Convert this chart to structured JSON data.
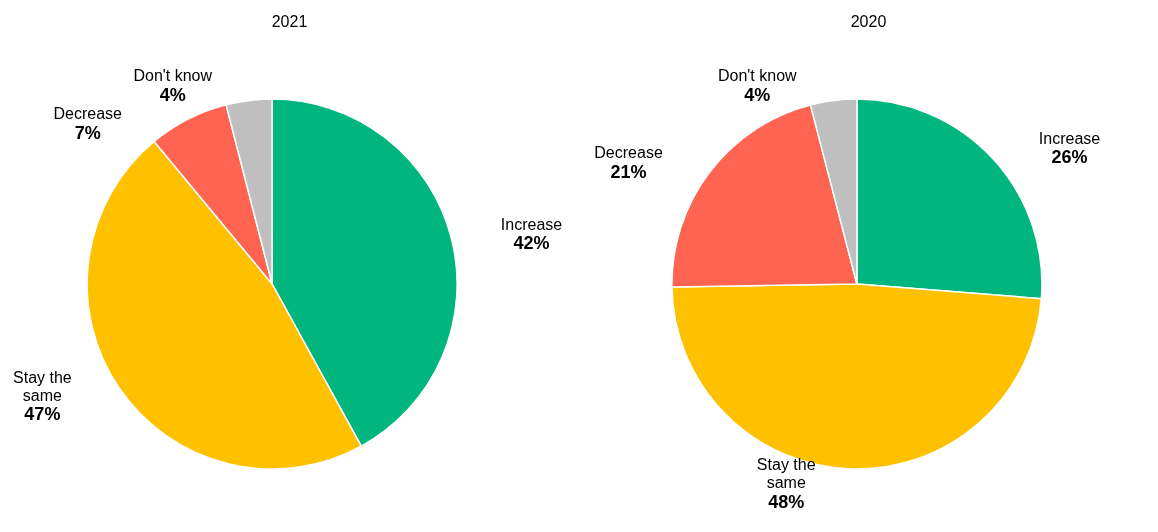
{
  "chart_data": [
    {
      "type": "pie",
      "title": "2021",
      "categories": [
        "Increase",
        "Stay the same",
        "Decrease",
        "Don't know"
      ],
      "values": [
        42,
        47,
        7,
        4
      ],
      "value_labels": [
        "42%",
        "47%",
        "7%",
        "4%"
      ],
      "colors": [
        "#00b67e",
        "#ffc000",
        "#ff6351",
        "#bfbfbf"
      ]
    },
    {
      "type": "pie",
      "title": "2020",
      "categories": [
        "Increase",
        "Stay the same",
        "Decrease",
        "Don't know"
      ],
      "values": [
        26,
        48,
        21,
        4
      ],
      "value_labels": [
        "26%",
        "48%",
        "21%",
        "4%"
      ],
      "colors": [
        "#00b67e",
        "#ffc000",
        "#ff6351",
        "#bfbfbf"
      ]
    }
  ]
}
